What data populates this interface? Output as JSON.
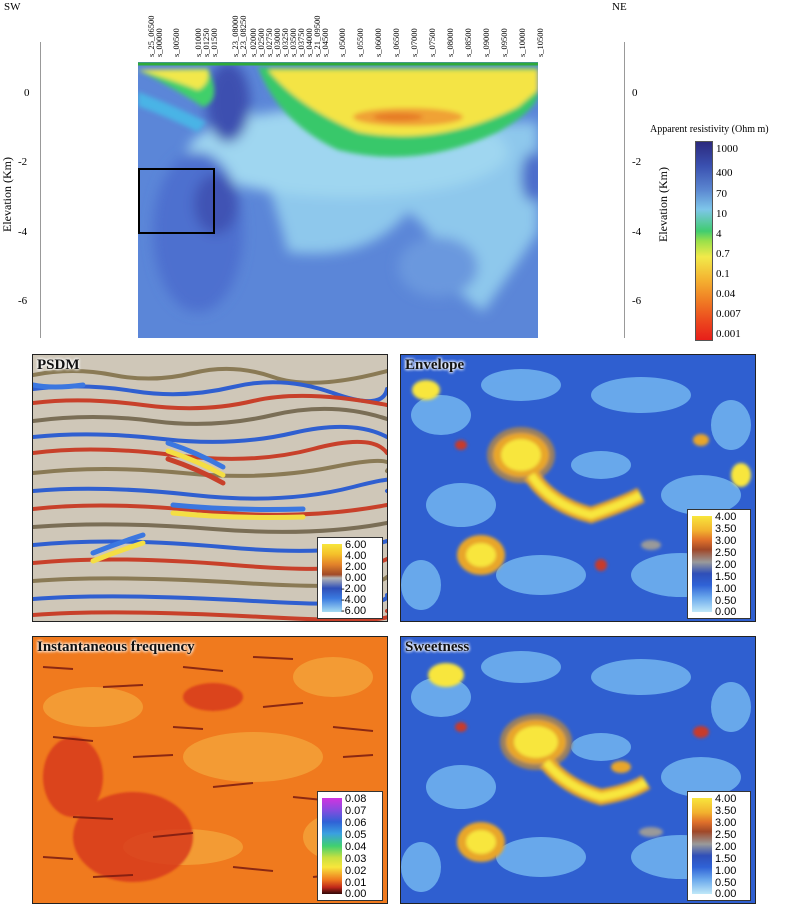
{
  "section": {
    "left_label": "SW",
    "right_label": "NE",
    "y_axis_label": "Elevation (Km)",
    "y_ticks": [
      "0",
      "-2",
      "-4",
      "-6"
    ],
    "stations": [
      "s_25_06500",
      "s_00000",
      "s_00500",
      "s_01000",
      "s_01250",
      "s_01500",
      "s_23_08000",
      "s_23_08250",
      "s_02000",
      "s_02500",
      "s_02750",
      "s_03000",
      "s_03250",
      "s_03500",
      "s_03750",
      "s_04000",
      "s_21_09500",
      "s_04500",
      "s_05000",
      "s_05500",
      "s_06000",
      "s_06500",
      "s_07000",
      "s_07500",
      "s_08000",
      "s_08500",
      "s_09000",
      "s_09500",
      "s_10000",
      "s_10500"
    ],
    "legend_title": "Apparent resistivity (Ohm m)",
    "legend_values": [
      "1000",
      "400",
      "70",
      "10",
      "4",
      "0.7",
      "0.1",
      "0.04",
      "0.007",
      "0.001"
    ]
  },
  "panels": {
    "psdm": {
      "title": "PSDM",
      "scale": [
        "6.00",
        "4.00",
        "2.00",
        "0.00",
        "-2.00",
        "-4.00",
        "-6.00"
      ]
    },
    "envelope": {
      "title": "Envelope",
      "scale": [
        "4.00",
        "3.50",
        "3.00",
        "2.50",
        "2.00",
        "1.50",
        "1.00",
        "0.50",
        "0.00"
      ]
    },
    "frequency": {
      "title": "Instantaneous frequency",
      "scale": [
        "0.08",
        "0.07",
        "0.06",
        "0.05",
        "0.04",
        "0.03",
        "0.02",
        "0.01",
        "0.00"
      ]
    },
    "sweetness": {
      "title": "Sweetness",
      "scale": [
        "4.00",
        "3.50",
        "3.00",
        "2.50",
        "2.00",
        "1.50",
        "1.00",
        "0.50",
        "0.00"
      ]
    }
  },
  "colors": {
    "resistivity_high": "#2a2f8a",
    "resistivity_mid": "#5b8fd6",
    "resistivity_low": "#e8261c",
    "seismic_positive": "#e8c21a",
    "seismic_negative": "#3a6fd8",
    "frequency_base": "#f07a1e"
  }
}
